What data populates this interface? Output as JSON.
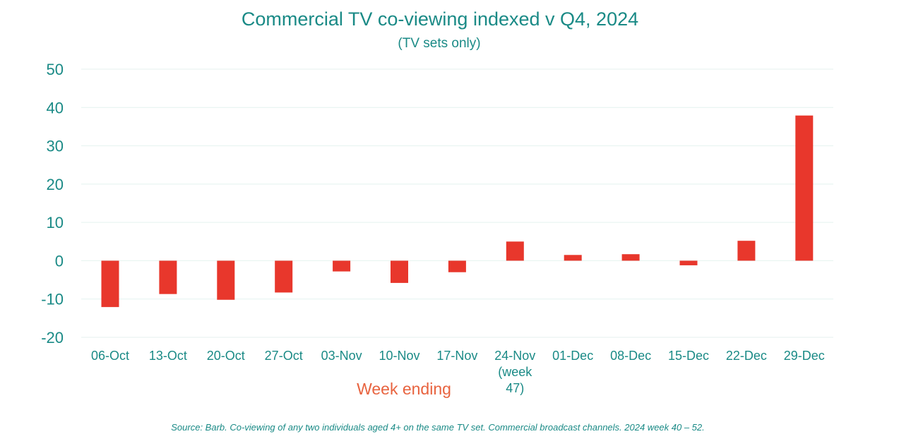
{
  "colors": {
    "bar": "#e8372c",
    "text": "#1a8a86",
    "xlabel": "#e8633f",
    "grid": "#e4f2ef"
  },
  "chart_data": {
    "type": "bar",
    "title": "Commercial TV co-viewing indexed v Q4, 2024",
    "subtitle": "(TV sets only)",
    "xlabel": "Week ending",
    "ylabel": "",
    "ylim": [
      -20,
      50
    ],
    "yticks": [
      "50",
      "40",
      "30",
      "20",
      "10",
      "0",
      "-10",
      "-20"
    ],
    "grid": true,
    "categories": [
      "06-Oct",
      "13-Oct",
      "20-Oct",
      "27-Oct",
      "03-Nov",
      "10-Nov",
      "17-Nov",
      "24-Nov (week 47)",
      "01-Dec",
      "08-Dec",
      "15-Dec",
      "22-Dec",
      "29-Dec"
    ],
    "category_lines": [
      [
        "06-Oct"
      ],
      [
        "13-Oct"
      ],
      [
        "20-Oct"
      ],
      [
        "27-Oct"
      ],
      [
        "03-Nov"
      ],
      [
        "10-Nov"
      ],
      [
        "17-Nov"
      ],
      [
        "24-Nov",
        "(week",
        "47)"
      ],
      [
        "01-Dec"
      ],
      [
        "08-Dec"
      ],
      [
        "15-Dec"
      ],
      [
        "22-Dec"
      ],
      [
        "29-Dec"
      ]
    ],
    "values": [
      -12.1,
      -8.7,
      -10.2,
      -8.3,
      -2.8,
      -5.8,
      -3.0,
      5.0,
      1.5,
      1.7,
      -1.2,
      5.2,
      37.9
    ],
    "source": "Source: Barb. Co-viewing of any two individuals aged 4+ on the same TV set. Commercial broadcast channels. 2024 week 40 – 52."
  }
}
